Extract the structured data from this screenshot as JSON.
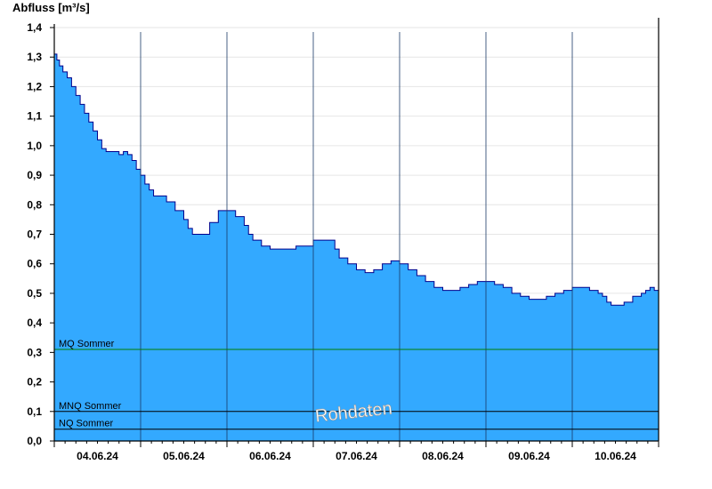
{
  "chart_data": {
    "type": "area",
    "ylabel": "Abfluss [m³/s]",
    "ylim": [
      0,
      1.4
    ],
    "yticks": [
      "0,0",
      "0,1",
      "0,2",
      "0,3",
      "0,4",
      "0,5",
      "0,6",
      "0,7",
      "0,8",
      "0,9",
      "1,0",
      "1,1",
      "1,2",
      "1,3",
      "1,4"
    ],
    "xticks": [
      "04.06.24",
      "05.06.24",
      "06.06.24",
      "07.06.24",
      "08.06.24",
      "09.06.24",
      "10.06.24"
    ],
    "xlim_days": [
      0,
      7
    ],
    "grid": "horizontal",
    "fill_color": "#33a9ff",
    "line_color": "#00008b",
    "series": [
      {
        "x_days": [
          0,
          0.03,
          0.06,
          0.1,
          0.15,
          0.2,
          0.25,
          0.3,
          0.35,
          0.4,
          0.45,
          0.5,
          0.55,
          0.6,
          0.65,
          0.7,
          0.75,
          0.8,
          0.85,
          0.9,
          0.95,
          1.0,
          1.05,
          1.1,
          1.15,
          1.2,
          1.3,
          1.4,
          1.5,
          1.55,
          1.6,
          1.65,
          1.7,
          1.8,
          1.9,
          2.0,
          2.1,
          2.2,
          2.25,
          2.3,
          2.4,
          2.5,
          2.6,
          2.7,
          2.8,
          2.9,
          3.0,
          3.1,
          3.2,
          3.25,
          3.3,
          3.4,
          3.5,
          3.6,
          3.7,
          3.8,
          3.9,
          4.0,
          4.1,
          4.2,
          4.3,
          4.4,
          4.5,
          4.6,
          4.7,
          4.8,
          4.9,
          5.0,
          5.1,
          5.2,
          5.3,
          5.4,
          5.5,
          5.6,
          5.7,
          5.8,
          5.9,
          6.0,
          6.1,
          6.2,
          6.3,
          6.35,
          6.4,
          6.45,
          6.5,
          6.6,
          6.7,
          6.8,
          6.85,
          6.9,
          6.95,
          7.0
        ],
        "values": [
          1.31,
          1.29,
          1.27,
          1.25,
          1.23,
          1.2,
          1.17,
          1.14,
          1.11,
          1.08,
          1.05,
          1.02,
          0.99,
          0.98,
          0.98,
          0.98,
          0.97,
          0.98,
          0.97,
          0.95,
          0.92,
          0.9,
          0.87,
          0.85,
          0.83,
          0.83,
          0.81,
          0.78,
          0.75,
          0.72,
          0.7,
          0.7,
          0.7,
          0.74,
          0.78,
          0.78,
          0.76,
          0.73,
          0.7,
          0.68,
          0.66,
          0.65,
          0.65,
          0.65,
          0.66,
          0.66,
          0.68,
          0.68,
          0.68,
          0.65,
          0.62,
          0.6,
          0.58,
          0.57,
          0.58,
          0.6,
          0.61,
          0.6,
          0.58,
          0.56,
          0.54,
          0.52,
          0.51,
          0.51,
          0.52,
          0.53,
          0.54,
          0.54,
          0.53,
          0.52,
          0.5,
          0.49,
          0.48,
          0.48,
          0.49,
          0.5,
          0.51,
          0.52,
          0.52,
          0.51,
          0.5,
          0.49,
          0.47,
          0.46,
          0.46,
          0.47,
          0.49,
          0.5,
          0.51,
          0.52,
          0.51,
          0.5
        ]
      }
    ],
    "reference_lines": [
      {
        "label": "MQ Sommer",
        "value": 0.31,
        "color": "#008000"
      },
      {
        "label": "MNQ Sommer",
        "value": 0.1,
        "color": "#000000"
      },
      {
        "label": "NQ Sommer",
        "value": 0.04,
        "color": "#000000"
      }
    ],
    "watermark": "Rohdaten"
  }
}
